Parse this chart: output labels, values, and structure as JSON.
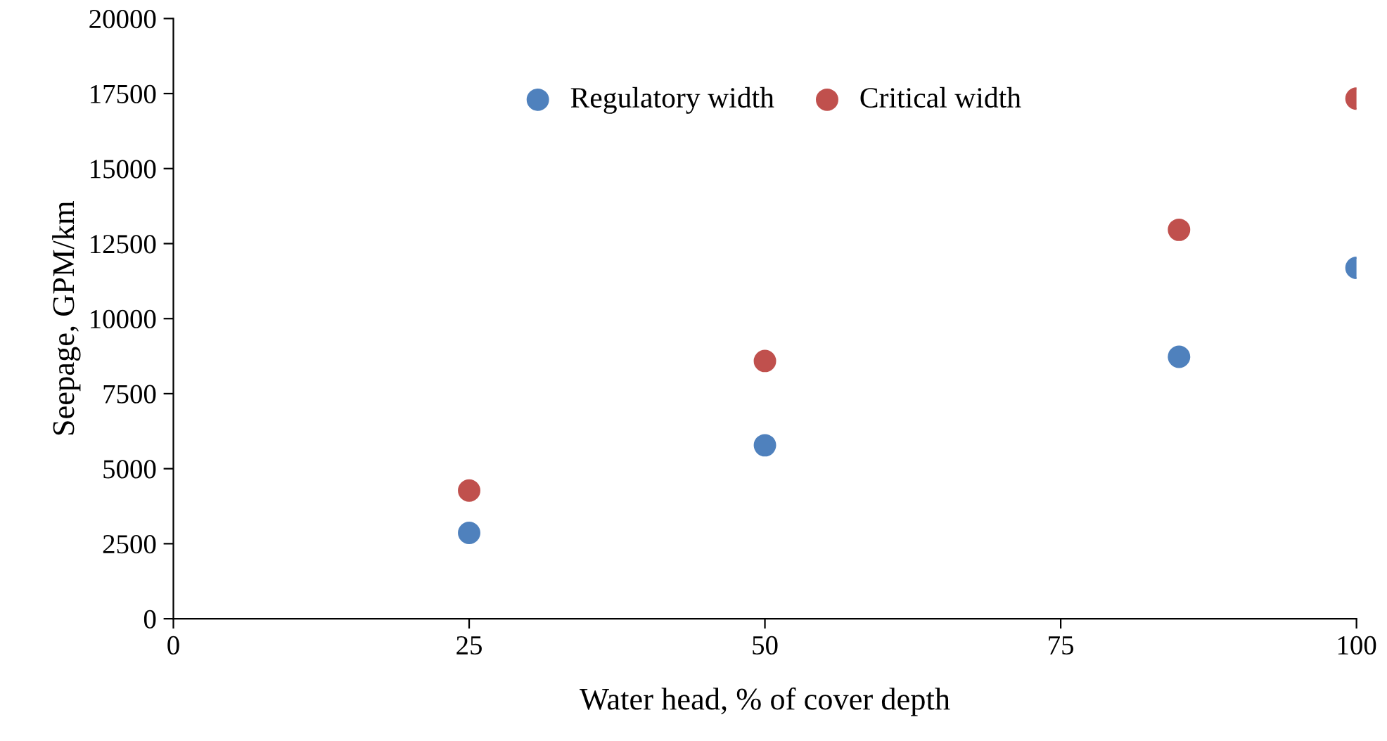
{
  "chart_data": {
    "type": "scatter",
    "xlabel": "Water head, % of cover depth",
    "ylabel": "Seepage, GPM/km",
    "x": [
      25,
      50,
      85,
      100
    ],
    "series": [
      {
        "name": "Regulatory width",
        "color": "#4f81bd",
        "values": [
          2860,
          5780,
          8730,
          11690
        ]
      },
      {
        "name": "Critical width",
        "color": "#c0504d",
        "values": [
          4270,
          8590,
          12960,
          17330
        ]
      }
    ],
    "xlim": [
      0,
      100
    ],
    "xticks": [
      0,
      25,
      50,
      75,
      100
    ],
    "ylim": [
      0,
      20000
    ],
    "yticks": [
      0,
      2500,
      5000,
      7500,
      10000,
      12500,
      15000,
      17500,
      20000
    ],
    "marker": "circle",
    "grid": false,
    "legend": "top"
  }
}
